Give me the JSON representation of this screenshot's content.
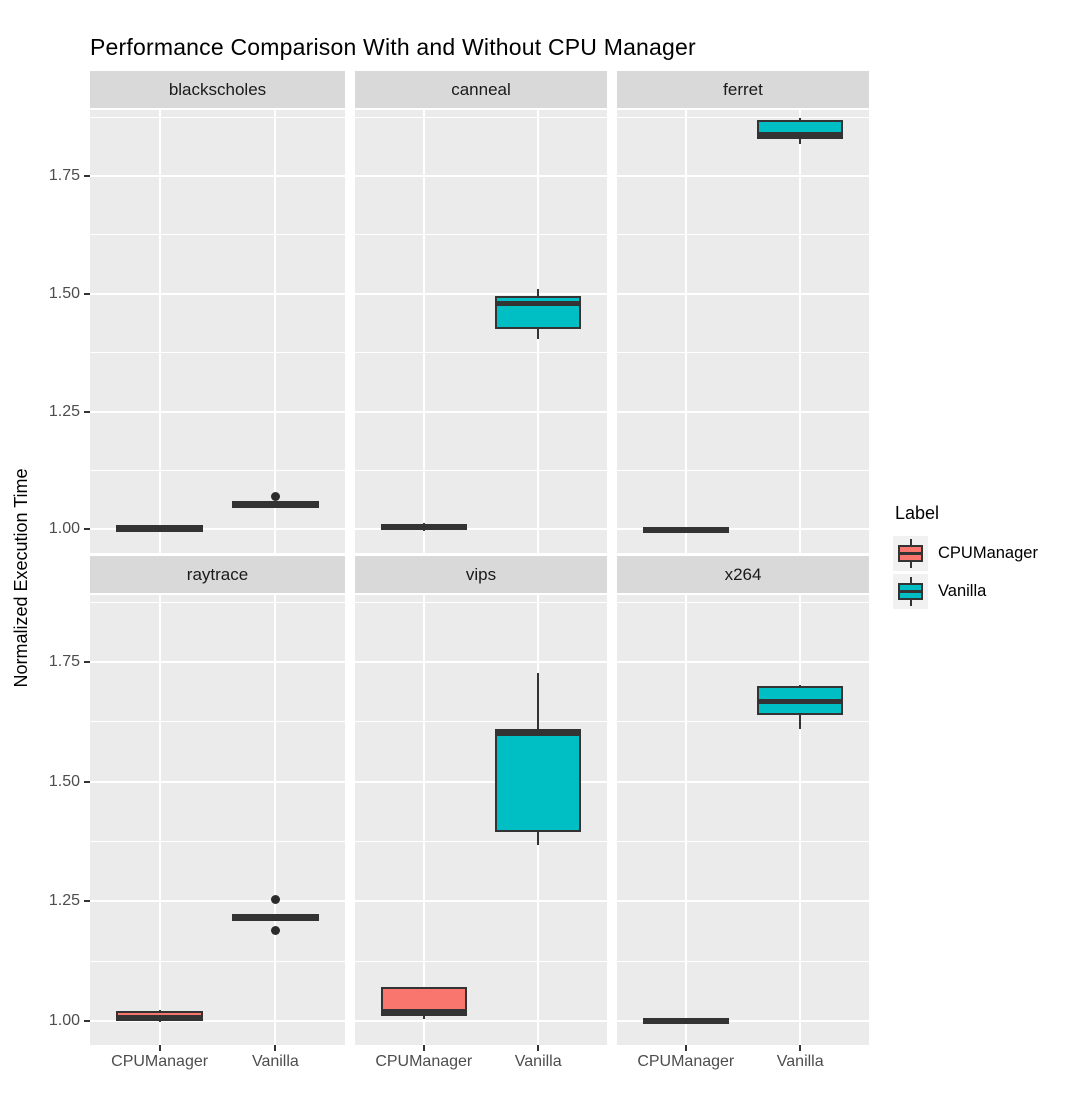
{
  "chart_data": {
    "type": "boxplot",
    "title": "Performance Comparison With and Without CPU Manager",
    "ylabel": "Normalized Execution Time",
    "xlabel": "",
    "ylim": [
      0.95,
      1.89
    ],
    "yticks": [
      1.0,
      1.25,
      1.5,
      1.75
    ],
    "ytick_labels": [
      "1.00",
      "1.25",
      "1.50",
      "1.75"
    ],
    "yminor": [
      1.125,
      1.375,
      1.625,
      1.875
    ],
    "grid": "on",
    "legend_title": "Label",
    "legend_position": "right",
    "categories": [
      "CPUManager",
      "Vanilla"
    ],
    "series_colors": {
      "CPUManager": "#F8766D",
      "Vanilla": "#00BFC4"
    },
    "facet_layout": {
      "rows": 2,
      "cols": 3
    },
    "facets": [
      {
        "name": "blackscholes",
        "boxes": [
          {
            "group": "CPUManager",
            "min": 1.002,
            "q1": 1.003,
            "med": 1.005,
            "q3": 1.008,
            "max": 1.009,
            "outliers": []
          },
          {
            "group": "Vanilla",
            "min": 1.052,
            "q1": 1.053,
            "med": 1.056,
            "q3": 1.059,
            "max": 1.06,
            "outliers": [
              1.07
            ]
          }
        ]
      },
      {
        "name": "canneal",
        "boxes": [
          {
            "group": "CPUManager",
            "min": 0.997,
            "q1": 0.999,
            "med": 1.004,
            "q3": 1.012,
            "max": 1.014,
            "outliers": []
          },
          {
            "group": "Vanilla",
            "min": 1.404,
            "q1": 1.425,
            "med": 1.479,
            "q3": 1.495,
            "max": 1.51,
            "outliers": []
          }
        ]
      },
      {
        "name": "ferret",
        "boxes": [
          {
            "group": "CPUManager",
            "min": 0.998,
            "q1": 0.999,
            "med": 1.001,
            "q3": 1.003,
            "max": 1.004,
            "outliers": []
          },
          {
            "group": "Vanilla",
            "min": 1.818,
            "q1": 1.828,
            "med": 1.837,
            "q3": 1.868,
            "max": 1.872,
            "outliers": []
          }
        ]
      },
      {
        "name": "raytrace",
        "boxes": [
          {
            "group": "CPUManager",
            "min": 0.998,
            "q1": 1.0,
            "med": 1.005,
            "q3": 1.022,
            "max": 1.024,
            "outliers": []
          },
          {
            "group": "Vanilla",
            "min": 1.215,
            "q1": 1.216,
            "med": 1.218,
            "q3": 1.22,
            "max": 1.221,
            "outliers": [
              1.254,
              1.19
            ]
          }
        ]
      },
      {
        "name": "vips",
        "boxes": [
          {
            "group": "CPUManager",
            "min": 1.004,
            "q1": 1.011,
            "med": 1.016,
            "q3": 1.072,
            "max": 1.073,
            "outliers": []
          },
          {
            "group": "Vanilla",
            "min": 1.368,
            "q1": 1.394,
            "med": 1.6,
            "q3": 1.61,
            "max": 1.728,
            "outliers": []
          }
        ]
      },
      {
        "name": "x264",
        "boxes": [
          {
            "group": "CPUManager",
            "min": 0.999,
            "q1": 1.0,
            "med": 1.003,
            "q3": 1.005,
            "max": 1.006,
            "outliers": []
          },
          {
            "group": "Vanilla",
            "min": 1.61,
            "q1": 1.639,
            "med": 1.667,
            "q3": 1.699,
            "max": 1.701,
            "outliers": []
          }
        ]
      }
    ],
    "colors": {
      "panel_background": "#EBEBEB",
      "strip_background": "#D9D9D9",
      "gridline": "#FFFFFF",
      "box_stroke": "#333333",
      "tick_text": "#4D4D4D"
    }
  }
}
